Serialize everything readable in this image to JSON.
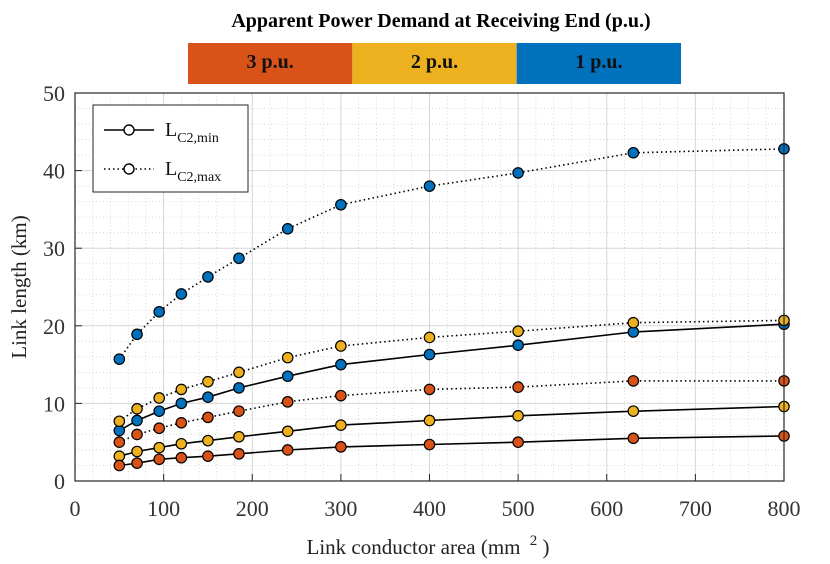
{
  "chart_data": {
    "type": "line",
    "title": "Apparent Power Demand at Receiving End (p.u.)",
    "colorbar": [
      {
        "label": "3 p.u.",
        "color": "#D95319"
      },
      {
        "label": "2 p.u.",
        "color": "#EDB120"
      },
      {
        "label": "1 p.u.",
        "color": "#0072BD"
      }
    ],
    "xlabel": "Link conductor area (mm",
    "xlabel_sup": "2",
    "xlabel_close": ")",
    "ylabel": "Link length (km)",
    "xlim": [
      0,
      800
    ],
    "ylim": [
      0,
      50
    ],
    "xticks": [
      0,
      100,
      200,
      300,
      400,
      500,
      600,
      700,
      800
    ],
    "yticks": [
      0,
      10,
      20,
      30,
      40,
      50
    ],
    "grid": true,
    "minor_grid": true,
    "legend": {
      "position": "top-left",
      "entries": [
        {
          "main": "L",
          "sub": "C2,min",
          "style": "solid"
        },
        {
          "main": "L",
          "sub": "C2,max",
          "style": "dotted"
        }
      ]
    },
    "x": [
      50,
      70,
      95,
      120,
      150,
      185,
      240,
      300,
      400,
      500,
      630,
      800
    ],
    "series": [
      {
        "name": "1 p.u. min",
        "power": "1 p.u.",
        "style": "solid",
        "color": "#0072BD",
        "values": [
          6.5,
          7.8,
          9.0,
          10.0,
          10.8,
          12.0,
          13.5,
          15.0,
          16.3,
          17.5,
          19.2,
          20.2
        ]
      },
      {
        "name": "1 p.u. max",
        "power": "1 p.u.",
        "style": "dotted",
        "color": "#0072BD",
        "values": [
          15.7,
          18.9,
          21.8,
          24.1,
          26.3,
          28.7,
          32.5,
          35.6,
          38.0,
          39.7,
          42.3,
          42.8
        ]
      },
      {
        "name": "2 p.u. min",
        "power": "2 p.u.",
        "style": "solid",
        "color": "#EDB120",
        "values": [
          3.2,
          3.8,
          4.3,
          4.8,
          5.2,
          5.7,
          6.4,
          7.2,
          7.8,
          8.4,
          9.0,
          9.6
        ]
      },
      {
        "name": "2 p.u. max",
        "power": "2 p.u.",
        "style": "dotted",
        "color": "#EDB120",
        "values": [
          7.7,
          9.3,
          10.7,
          11.8,
          12.8,
          14.0,
          15.9,
          17.4,
          18.5,
          19.3,
          20.4,
          20.7
        ]
      },
      {
        "name": "3 p.u. min",
        "power": "3 p.u.",
        "style": "solid",
        "color": "#D95319",
        "values": [
          2.0,
          2.3,
          2.8,
          3.0,
          3.2,
          3.5,
          4.0,
          4.4,
          4.7,
          5.0,
          5.5,
          5.8
        ]
      },
      {
        "name": "3 p.u. max",
        "power": "3 p.u.",
        "style": "dotted",
        "color": "#D95319",
        "values": [
          5.0,
          6.0,
          6.8,
          7.5,
          8.2,
          9.0,
          10.2,
          11.0,
          11.8,
          12.1,
          12.9,
          12.9
        ]
      }
    ]
  }
}
